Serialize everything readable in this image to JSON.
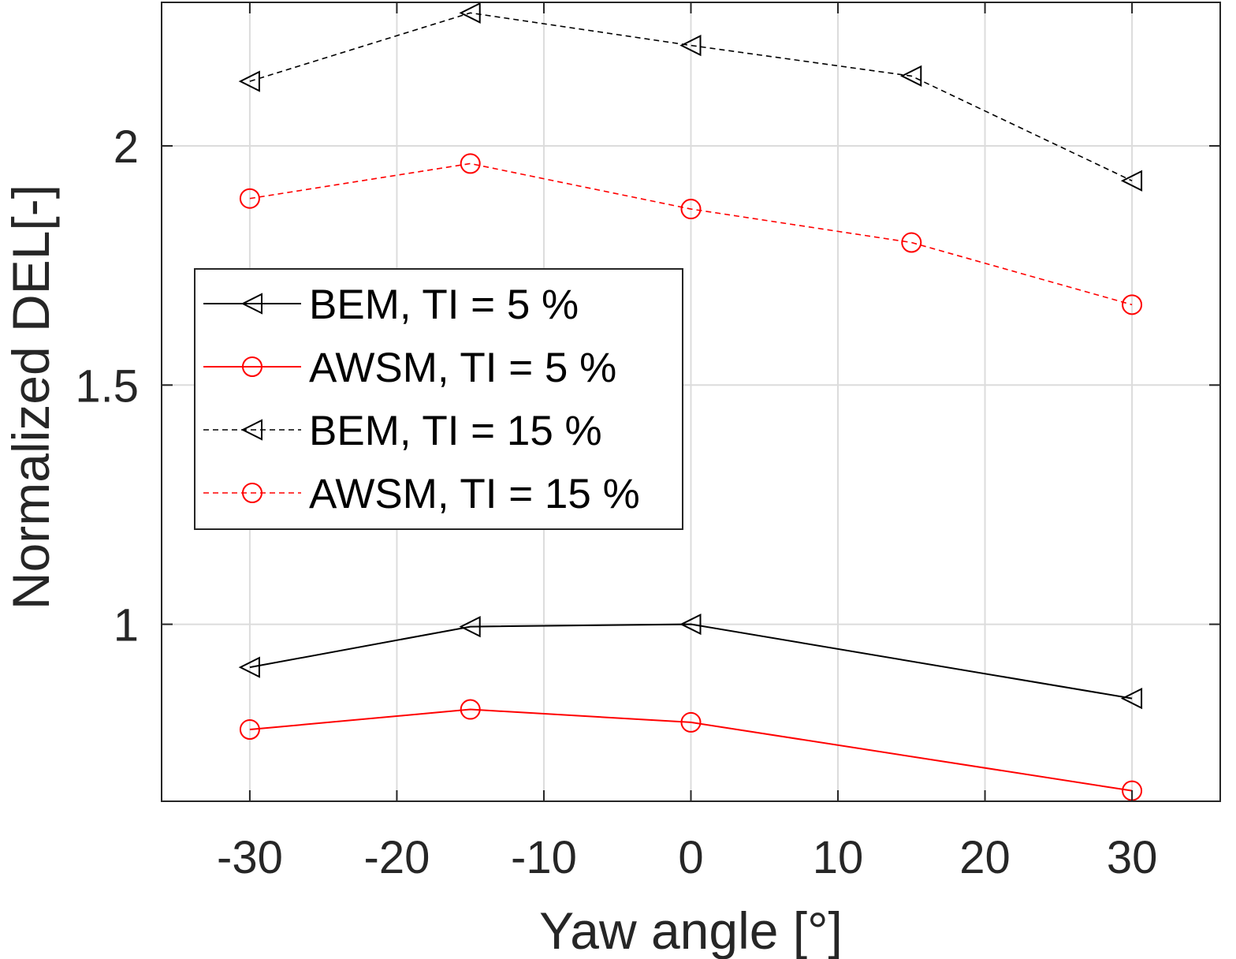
{
  "chart_data": {
    "type": "line",
    "title": "",
    "xlabel": "Yaw angle [°]",
    "ylabel": "Normalized DEL[-]",
    "x": [
      -30,
      -15,
      0,
      15,
      30
    ],
    "xlim": [
      -36,
      36
    ],
    "ylim": [
      0.63,
      2.3
    ],
    "xticks": [
      -30,
      -20,
      -10,
      0,
      10,
      20,
      30
    ],
    "yticks": [
      1,
      1.5,
      2
    ],
    "xtick_labels": [
      "-30",
      "-20",
      "-10",
      "0",
      "10",
      "20",
      "30"
    ],
    "ytick_labels": [
      "1",
      "1.5",
      "2"
    ],
    "grid": true,
    "legend_position": "middle-left",
    "series": [
      {
        "name": "BEM, TI = 5%",
        "legend_label": "BEM, TI = 5 %",
        "color": "#000000",
        "line_style": "solid",
        "marker": "triangle-left",
        "x": [
          -30,
          -15,
          0,
          30
        ],
        "values": [
          0.91,
          0.995,
          1.0,
          0.845
        ]
      },
      {
        "name": "AWSM, TI = 5%",
        "legend_label": "AWSM, TI = 5 %",
        "color": "#ff0000",
        "line_style": "solid",
        "marker": "circle",
        "x": [
          -30,
          -15,
          0,
          30
        ],
        "values": [
          0.78,
          0.822,
          0.795,
          0.652
        ]
      },
      {
        "name": "BEM, TI = 15%",
        "legend_label": "BEM, TI = 15 %",
        "color": "#000000",
        "line_style": "dashed",
        "marker": "triangle-left",
        "x": [
          -30,
          -15,
          0,
          15,
          30
        ],
        "values": [
          2.135,
          2.278,
          2.21,
          2.146,
          1.927
        ]
      },
      {
        "name": "AWSM, TI = 15%",
        "legend_label": "AWSM, TI = 15 %",
        "color": "#ff0000",
        "line_style": "dashed",
        "marker": "circle",
        "x": [
          -30,
          -15,
          0,
          15,
          30
        ],
        "values": [
          1.89,
          1.963,
          1.868,
          1.798,
          1.668
        ]
      }
    ]
  }
}
